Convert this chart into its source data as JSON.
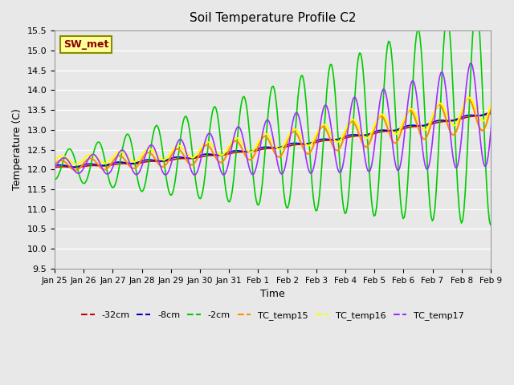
{
  "title": "Soil Temperature Profile C2",
  "xlabel": "Time",
  "ylabel": "Temperature (C)",
  "ylim": [
    9.5,
    15.5
  ],
  "annotation_text": "SW_met",
  "annotation_color": "#8B0000",
  "annotation_bg": "#FFFF99",
  "annotation_border": "#8B8B00",
  "background_color": "#E8E8E8",
  "grid_color": "#FFFFFF",
  "series_colors": {
    "-32cm": "#CC0000",
    "-8cm": "#0000CC",
    "-2cm": "#00CC00",
    "TC_temp15": "#FF8C00",
    "TC_temp16": "#FFFF00",
    "TC_temp17": "#9B30FF"
  },
  "xtick_labels": [
    "Jan 25",
    "Jan 26",
    "Jan 27",
    "Jan 28",
    "Jan 29",
    "Jan 30",
    "Jan 31",
    "Feb 1",
    "Feb 2",
    "Feb 3",
    "Feb 4",
    "Feb 5",
    "Feb 6",
    "Feb 7",
    "Feb 8",
    "Feb 9"
  ],
  "ytick_values": [
    9.5,
    10.0,
    10.5,
    11.0,
    11.5,
    12.0,
    12.5,
    13.0,
    13.5,
    14.0,
    14.5,
    15.0,
    15.5
  ],
  "n_days": 16
}
